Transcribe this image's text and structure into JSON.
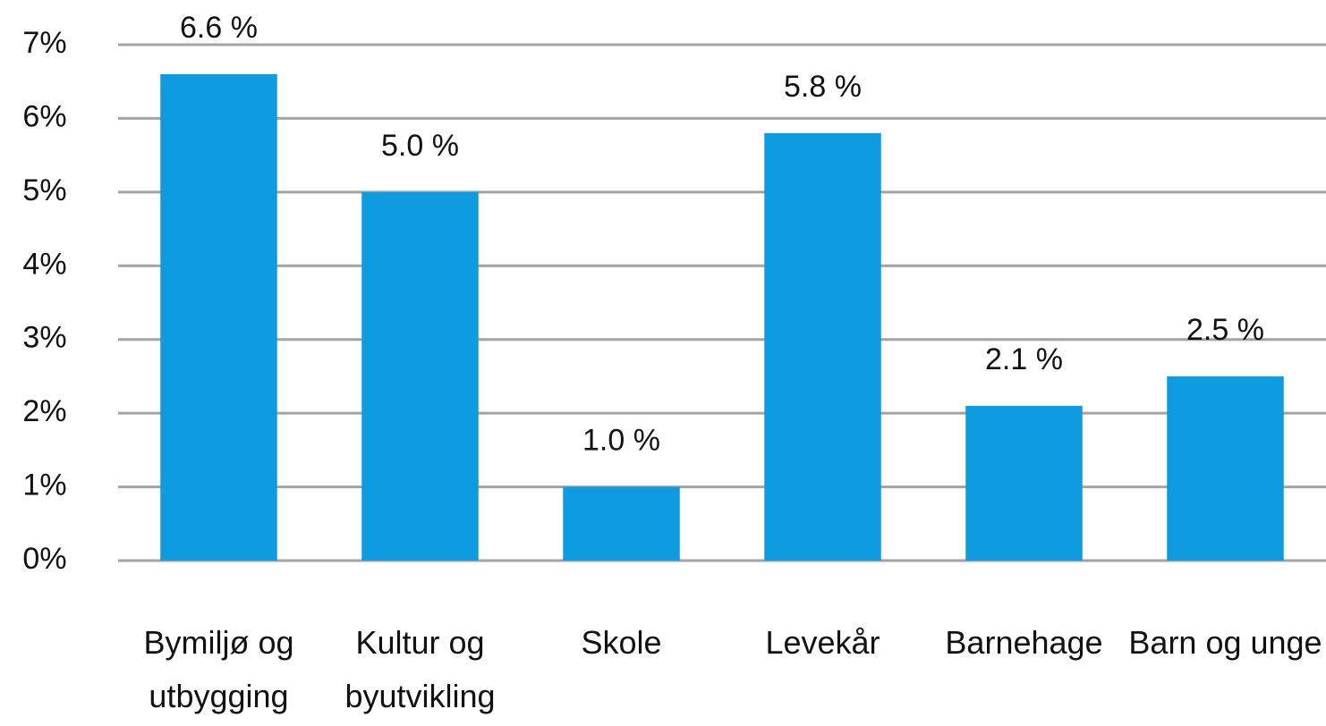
{
  "chart_data": {
    "type": "bar",
    "categories": [
      "Bymiljø og utbygging",
      "Kultur og byutvikling",
      "Skole",
      "Levekår",
      "Barnehage",
      "Barn og unge"
    ],
    "values": [
      6.6,
      5.0,
      1.0,
      5.8,
      2.1,
      2.5
    ],
    "value_labels": [
      "6.6 %",
      "5.0 %",
      "1.0 %",
      "5.8 %",
      "2.1 %",
      "2.5 %"
    ],
    "color": "#0f9be0",
    "ylim": [
      0,
      7
    ],
    "yticks": [
      {
        "value": 0,
        "label": "0%"
      },
      {
        "value": 1,
        "label": "1%"
      },
      {
        "value": 2,
        "label": "2%"
      },
      {
        "value": 3,
        "label": "3%"
      },
      {
        "value": 4,
        "label": "4%"
      },
      {
        "value": 5,
        "label": "5%"
      },
      {
        "value": 6,
        "label": "6%"
      },
      {
        "value": 7,
        "label": "7%"
      }
    ],
    "grid": true
  }
}
